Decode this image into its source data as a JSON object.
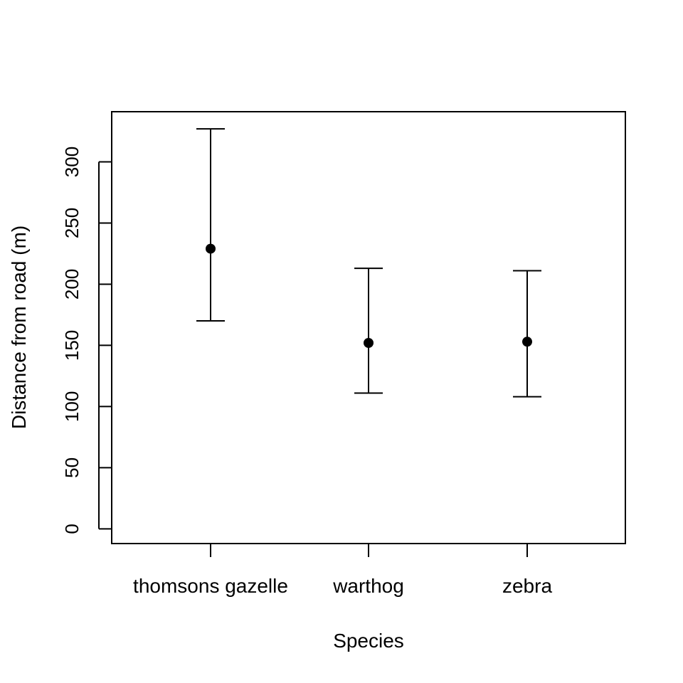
{
  "chart_data": {
    "type": "scatter",
    "title": "",
    "xlabel": "Species",
    "ylabel": "Distance from road (m)",
    "categories": [
      "thomsons gazelle",
      "warthog",
      "zebra"
    ],
    "y_ticks": [
      "0",
      "50",
      "100",
      "150",
      "200",
      "250",
      "300"
    ],
    "ylim": [
      -12,
      341
    ],
    "grid": false,
    "series": [
      {
        "points": [
          {
            "category": "thomsons gazelle",
            "mean": 229,
            "lower": 170,
            "upper": 327
          },
          {
            "category": "warthog",
            "mean": 152,
            "lower": 111,
            "upper": 213
          },
          {
            "category": "zebra",
            "mean": 153,
            "lower": 108,
            "upper": 211
          }
        ]
      }
    ],
    "colors": {
      "marker": "#000000",
      "axis": "#000000"
    }
  }
}
